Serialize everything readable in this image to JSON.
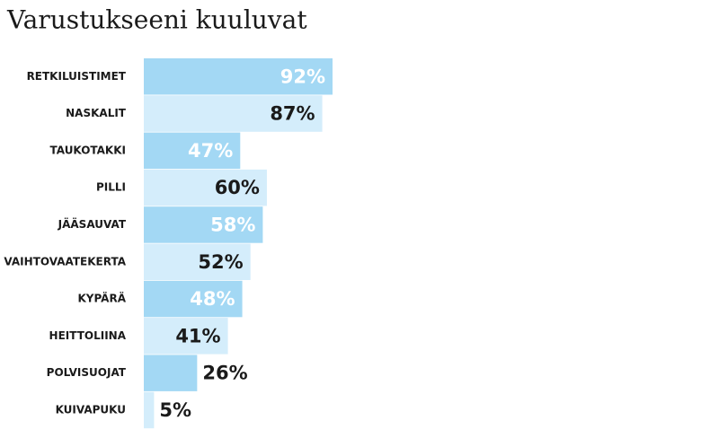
{
  "chart_data": {
    "type": "bar",
    "orientation": "horizontal",
    "title": "Varustukseeni kuuluvat",
    "categories": [
      "RETKILUISTIMET",
      "NASKALIT",
      "TAUKOTAKKI",
      "PILLI",
      "JÄÄSAUVAT",
      "VAIHTOVAATEKERTA",
      "KYPÄRÄ",
      "HEITTOLIINA",
      "POLVISUOJAT",
      "KUIVAPUKU"
    ],
    "values": [
      92,
      87,
      47,
      60,
      58,
      52,
      48,
      41,
      26,
      5
    ],
    "value_labels": [
      "92%",
      "87%",
      "47%",
      "60%",
      "58%",
      "52%",
      "48%",
      "41%",
      "26%",
      "5%"
    ],
    "colors": [
      "#a3d8f4",
      "#d4edfb"
    ]
  }
}
